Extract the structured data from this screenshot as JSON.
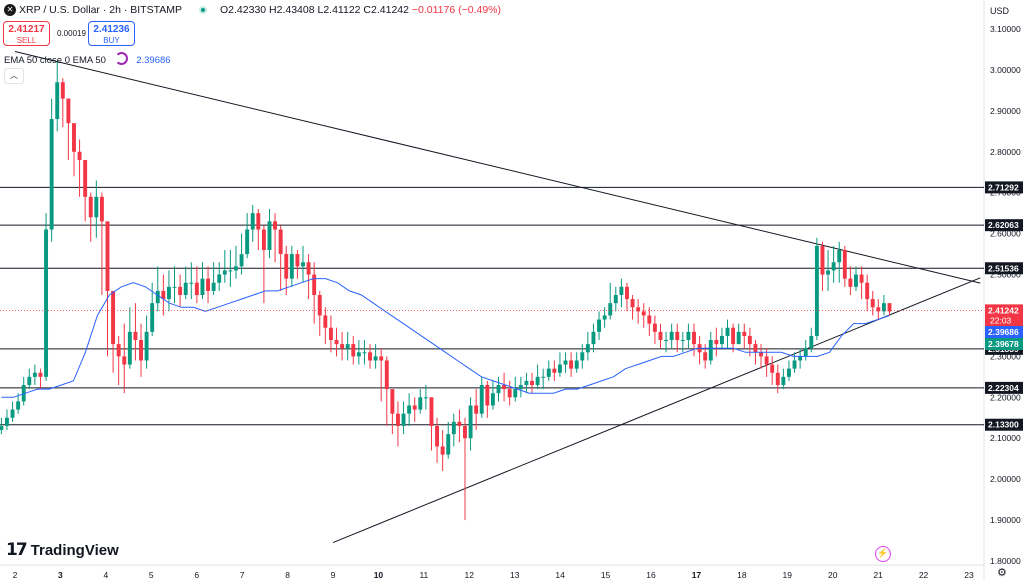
{
  "header": {
    "symbol_title": "XRP / U.S. Dollar · 2h · BITSTAMP",
    "ohlc": "O2.42330 H2.43408 L2.41122 C2.41242",
    "change": "−0.01176 (−0.49%)",
    "sell_price": "2.41217",
    "sell_label": "SELL",
    "spread": "0.00019",
    "buy_price": "2.41236",
    "buy_label": "BUY",
    "ema_label": "EMA 50 close 0 EMA 50",
    "ema_value": "2.39686",
    "icons": [
      "xrp-symbol-icon",
      "market-status-icon",
      "ema-settings-icon",
      "collapse-chevron-icon",
      "snapshot-icon",
      "settings-icon"
    ]
  },
  "branding": {
    "logo_mark": "17",
    "logo_text": "TradingView"
  },
  "colors": {
    "up": "#089981",
    "down": "#f23645",
    "ema": "#2962ff",
    "level_line": "#131722",
    "trend_line": "#131722",
    "grid_text": "#131722",
    "last_price_bg": "#f23645",
    "ema_tag_bg": "#2962ff",
    "green_tag_bg": "#089981",
    "level_tag_bg": "#131722"
  },
  "chart_data": {
    "type": "candlestick",
    "currency": "USD",
    "price_axis_ticks": [
      "3.10000",
      "3.00000",
      "2.90000",
      "2.80000",
      "2.70000",
      "2.60000",
      "2.50000",
      "2.40000",
      "2.30000",
      "2.20000",
      "2.10000",
      "2.00000",
      "1.90000",
      "1.80000"
    ],
    "price_axis_values": [
      3.1,
      3.0,
      2.9,
      2.8,
      2.7,
      2.6,
      2.5,
      2.4,
      2.3,
      2.2,
      2.1,
      2.0,
      1.9,
      1.8
    ],
    "ylim": [
      1.785,
      3.135
    ],
    "date_ticks": [
      "2",
      "3",
      "4",
      "5",
      "6",
      "7",
      "8",
      "9",
      "10",
      "11",
      "12",
      "13",
      "14",
      "15",
      "16",
      "17",
      "18",
      "19",
      "20",
      "21",
      "22",
      "23"
    ],
    "bold_date_ticks": [
      "3",
      "10",
      "17"
    ],
    "xlim_days": [
      1.7,
      23.25
    ],
    "horizontal_levels": [
      2.71292,
      2.62063,
      2.51536,
      2.31839,
      2.22304,
      2.133
    ],
    "horizontal_level_labels": [
      "2.71292",
      "2.62063",
      "2.51536",
      "2.31839",
      "2.22304",
      "2.13300"
    ],
    "trendlines": [
      {
        "name": "descending",
        "from": {
          "day": 2.0,
          "price": 3.045
        },
        "to": {
          "day": 23.25,
          "price": 2.479
        }
      },
      {
        "name": "ascending",
        "from": {
          "day": 9.0,
          "price": 1.845
        },
        "to": {
          "day": 23.25,
          "price": 2.492
        }
      }
    ],
    "price_tags": [
      {
        "value": 2.41242,
        "label": "2.41242",
        "sub": "22:03",
        "kind": "last"
      },
      {
        "value": 2.39686,
        "label": "2.39686",
        "kind": "ema"
      },
      {
        "value": 2.39678,
        "label": "2.39678",
        "kind": "green"
      }
    ],
    "last_price": 2.41242,
    "candle_closes": [
      2.13,
      2.15,
      2.17,
      2.19,
      2.23,
      2.25,
      2.26,
      2.25,
      2.61,
      2.88,
      2.97,
      2.93,
      2.87,
      2.8,
      2.78,
      2.69,
      2.64,
      2.69,
      2.63,
      2.46,
      2.33,
      2.3,
      2.28,
      2.36,
      2.34,
      2.29,
      2.36,
      2.43,
      2.46,
      2.44,
      2.47,
      2.47,
      2.45,
      2.48,
      2.48,
      2.45,
      2.49,
      2.46,
      2.48,
      2.5,
      2.51,
      2.51,
      2.52,
      2.55,
      2.61,
      2.65,
      2.61,
      2.56,
      2.63,
      2.61,
      2.55,
      2.49,
      2.55,
      2.52,
      2.53,
      2.5,
      2.45,
      2.4,
      2.37,
      2.34,
      2.33,
      2.32,
      2.33,
      2.3,
      2.31,
      2.31,
      2.29,
      2.3,
      2.29,
      2.22,
      2.16,
      2.13,
      2.16,
      2.18,
      2.17,
      2.2,
      2.2,
      2.13,
      2.08,
      2.06,
      2.11,
      2.14,
      2.13,
      2.1,
      2.18,
      2.16,
      2.23,
      2.18,
      2.21,
      2.23,
      2.22,
      2.2,
      2.22,
      2.23,
      2.24,
      2.23,
      2.25,
      2.25,
      2.27,
      2.26,
      2.28,
      2.29,
      2.27,
      2.29,
      2.31,
      2.33,
      2.36,
      2.39,
      2.4,
      2.43,
      2.45,
      2.47,
      2.44,
      2.42,
      2.41,
      2.4,
      2.38,
      2.36,
      2.34,
      2.34,
      2.36,
      2.34,
      2.34,
      2.36,
      2.33,
      2.31,
      2.29,
      2.34,
      2.33,
      2.35,
      2.37,
      2.33,
      2.36,
      2.35,
      2.33,
      2.31,
      2.3,
      2.28,
      2.26,
      2.23,
      2.25,
      2.27,
      2.29,
      2.3,
      2.32,
      2.35,
      2.57,
      2.5,
      2.51,
      2.53,
      2.56,
      2.49,
      2.47,
      2.5,
      2.48,
      2.44,
      2.42,
      2.41,
      2.43,
      2.41
    ],
    "candle_highs": [
      2.15,
      2.17,
      2.19,
      2.21,
      2.25,
      2.27,
      2.28,
      2.27,
      2.65,
      2.93,
      3.02,
      2.98,
      2.93,
      2.85,
      2.83,
      2.75,
      2.7,
      2.73,
      2.7,
      2.56,
      2.4,
      2.35,
      2.38,
      2.42,
      2.43,
      2.38,
      2.4,
      2.48,
      2.52,
      2.5,
      2.51,
      2.52,
      2.5,
      2.52,
      2.53,
      2.52,
      2.53,
      2.52,
      2.53,
      2.53,
      2.56,
      2.56,
      2.57,
      2.6,
      2.65,
      2.67,
      2.66,
      2.62,
      2.66,
      2.65,
      2.62,
      2.57,
      2.57,
      2.56,
      2.57,
      2.55,
      2.53,
      2.46,
      2.42,
      2.4,
      2.37,
      2.36,
      2.36,
      2.35,
      2.34,
      2.34,
      2.33,
      2.33,
      2.32,
      2.3,
      2.22,
      2.19,
      2.19,
      2.21,
      2.2,
      2.22,
      2.23,
      2.2,
      2.15,
      2.12,
      2.14,
      2.16,
      2.17,
      2.15,
      2.2,
      2.22,
      2.25,
      2.24,
      2.24,
      2.25,
      2.26,
      2.24,
      2.25,
      2.25,
      2.26,
      2.26,
      2.28,
      2.27,
      2.29,
      2.29,
      2.31,
      2.31,
      2.31,
      2.31,
      2.33,
      2.36,
      2.38,
      2.41,
      2.42,
      2.48,
      2.47,
      2.49,
      2.48,
      2.45,
      2.44,
      2.43,
      2.42,
      2.4,
      2.38,
      2.36,
      2.38,
      2.38,
      2.36,
      2.38,
      2.38,
      2.35,
      2.33,
      2.36,
      2.37,
      2.37,
      2.39,
      2.38,
      2.38,
      2.38,
      2.37,
      2.34,
      2.33,
      2.32,
      2.3,
      2.28,
      2.27,
      2.29,
      2.31,
      2.32,
      2.34,
      2.37,
      2.59,
      2.58,
      2.56,
      2.57,
      2.58,
      2.57,
      2.52,
      2.52,
      2.52,
      2.5,
      2.46,
      2.44,
      2.45,
      2.43
    ],
    "candle_lows": [
      2.11,
      2.12,
      2.14,
      2.16,
      2.18,
      2.22,
      2.23,
      2.22,
      2.24,
      2.58,
      2.85,
      2.86,
      2.78,
      2.74,
      2.69,
      2.63,
      2.58,
      2.59,
      2.45,
      2.3,
      2.26,
      2.23,
      2.21,
      2.27,
      2.29,
      2.25,
      2.27,
      2.35,
      2.41,
      2.4,
      2.41,
      2.43,
      2.42,
      2.44,
      2.44,
      2.43,
      2.44,
      2.43,
      2.45,
      2.46,
      2.48,
      2.47,
      2.49,
      2.5,
      2.54,
      2.58,
      2.56,
      2.43,
      2.54,
      2.53,
      2.46,
      2.45,
      2.47,
      2.49,
      2.48,
      2.44,
      2.38,
      2.35,
      2.33,
      2.31,
      2.3,
      2.29,
      2.29,
      2.28,
      2.28,
      2.28,
      2.27,
      2.27,
      2.19,
      2.13,
      2.11,
      2.08,
      2.11,
      2.13,
      2.14,
      2.16,
      2.17,
      2.07,
      2.04,
      2.02,
      2.05,
      2.08,
      2.09,
      1.9,
      2.07,
      2.12,
      2.15,
      2.15,
      2.17,
      2.19,
      2.19,
      2.18,
      2.19,
      2.2,
      2.21,
      2.21,
      2.22,
      2.22,
      2.24,
      2.24,
      2.25,
      2.26,
      2.25,
      2.26,
      2.27,
      2.29,
      2.31,
      2.34,
      2.37,
      2.39,
      2.41,
      2.42,
      2.41,
      2.39,
      2.38,
      2.37,
      2.35,
      2.33,
      2.32,
      2.31,
      2.32,
      2.31,
      2.31,
      2.32,
      2.3,
      2.28,
      2.27,
      2.28,
      2.3,
      2.32,
      2.32,
      2.31,
      2.33,
      2.32,
      2.3,
      2.28,
      2.27,
      2.25,
      2.23,
      2.21,
      2.22,
      2.24,
      2.26,
      2.27,
      2.29,
      2.31,
      2.34,
      2.46,
      2.46,
      2.48,
      2.48,
      2.47,
      2.45,
      2.46,
      2.44,
      2.41,
      2.4,
      2.39,
      2.4,
      2.4
    ],
    "ema_50": [
      2.2,
      2.2,
      2.21,
      2.22,
      2.22,
      2.23,
      2.24,
      2.31,
      2.4,
      2.45,
      2.47,
      2.48,
      2.47,
      2.45,
      2.43,
      2.42,
      2.42,
      2.41,
      2.42,
      2.43,
      2.44,
      2.45,
      2.46,
      2.46,
      2.47,
      2.48,
      2.49,
      2.49,
      2.48,
      2.46,
      2.45,
      2.43,
      2.41,
      2.39,
      2.37,
      2.35,
      2.33,
      2.31,
      2.29,
      2.27,
      2.25,
      2.24,
      2.23,
      2.22,
      2.21,
      2.21,
      2.21,
      2.22,
      2.22,
      2.23,
      2.24,
      2.25,
      2.27,
      2.28,
      2.29,
      2.3,
      2.3,
      2.31,
      2.32,
      2.32,
      2.32,
      2.32,
      2.31,
      2.31,
      2.31,
      2.31,
      2.3,
      2.3,
      2.3,
      2.31,
      2.35,
      2.38,
      2.38,
      2.39,
      2.4
    ]
  }
}
